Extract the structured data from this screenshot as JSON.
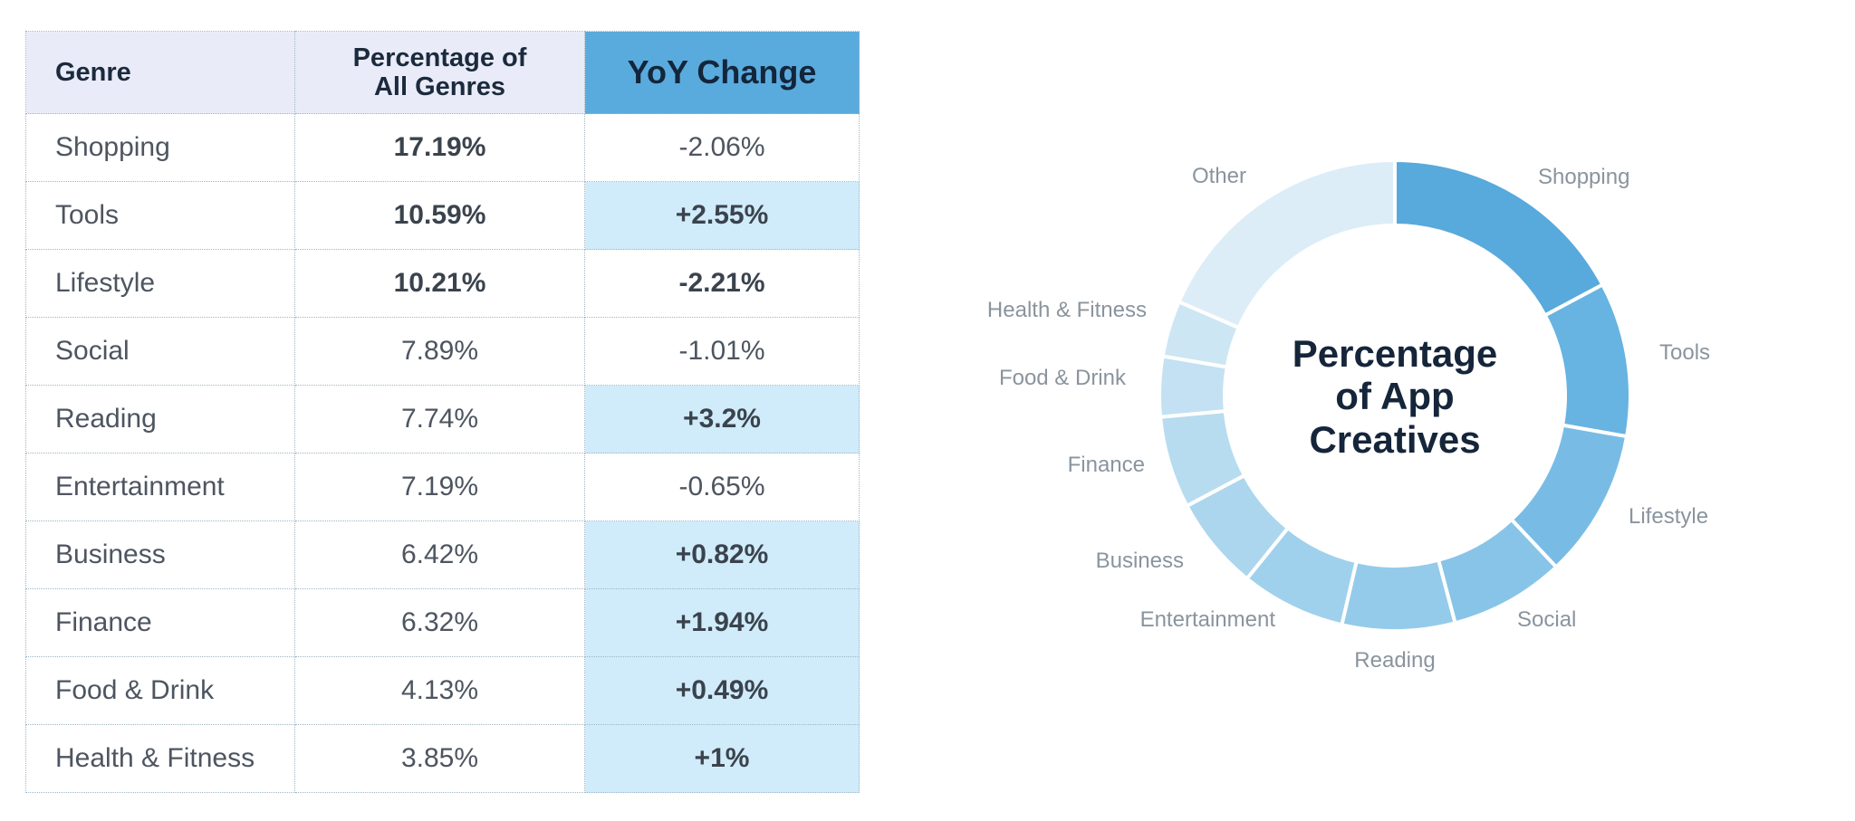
{
  "table": {
    "headers": {
      "genre": "Genre",
      "percentage_line1": "Percentage of",
      "percentage_line2": "All Genres",
      "yoy": "YoY Change"
    },
    "rows": [
      {
        "genre": "Shopping",
        "percentage": "17.19%",
        "yoy": "-2.06%",
        "pct_bold": true,
        "yoy_bold": false,
        "yoy_highlight": false
      },
      {
        "genre": "Tools",
        "percentage": "10.59%",
        "yoy": "+2.55%",
        "pct_bold": true,
        "yoy_bold": true,
        "yoy_highlight": true
      },
      {
        "genre": "Lifestyle",
        "percentage": "10.21%",
        "yoy": "-2.21%",
        "pct_bold": true,
        "yoy_bold": true,
        "yoy_highlight": false
      },
      {
        "genre": "Social",
        "percentage": "7.89%",
        "yoy": "-1.01%",
        "pct_bold": false,
        "yoy_bold": false,
        "yoy_highlight": false
      },
      {
        "genre": "Reading",
        "percentage": "7.74%",
        "yoy": "+3.2%",
        "pct_bold": false,
        "yoy_bold": true,
        "yoy_highlight": true
      },
      {
        "genre": "Entertainment",
        "percentage": "7.19%",
        "yoy": "-0.65%",
        "pct_bold": false,
        "yoy_bold": false,
        "yoy_highlight": false
      },
      {
        "genre": "Business",
        "percentage": "6.42%",
        "yoy": "+0.82%",
        "pct_bold": false,
        "yoy_bold": true,
        "yoy_highlight": true
      },
      {
        "genre": "Finance",
        "percentage": "6.32%",
        "yoy": "+1.94%",
        "pct_bold": false,
        "yoy_bold": true,
        "yoy_highlight": true
      },
      {
        "genre": "Food & Drink",
        "percentage": "4.13%",
        "yoy": "+0.49%",
        "pct_bold": false,
        "yoy_bold": true,
        "yoy_highlight": true
      },
      {
        "genre": "Health & Fitness",
        "percentage": "3.85%",
        "yoy": "+1%",
        "pct_bold": false,
        "yoy_bold": true,
        "yoy_highlight": true
      }
    ]
  },
  "chart_data": {
    "type": "pie",
    "title": "Percentage of App Creatives",
    "title_lines": [
      "Percentage",
      "of App",
      "Creatives"
    ],
    "style": "donut",
    "start": "top, clockwise",
    "categories": [
      "Shopping",
      "Tools",
      "Lifestyle",
      "Social",
      "Reading",
      "Entertainment",
      "Business",
      "Finance",
      "Food & Drink",
      "Health & Fitness",
      "Other"
    ],
    "values": [
      17.19,
      10.59,
      10.21,
      7.89,
      7.74,
      7.19,
      6.42,
      6.32,
      4.13,
      3.85,
      18.47
    ],
    "colors": [
      "#58a9dc",
      "#67b3e1",
      "#78bce5",
      "#88c4e8",
      "#94cbea",
      "#a0d1ec",
      "#acd6ee",
      "#b7dcf0",
      "#c3e1f2",
      "#cde6f4",
      "#dcedf7"
    ]
  }
}
